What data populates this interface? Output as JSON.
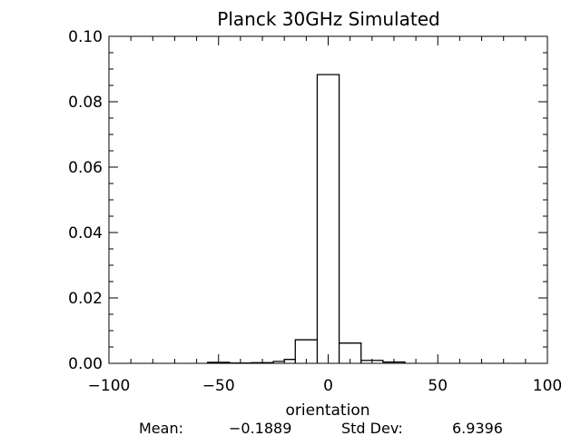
{
  "chart_data": {
    "type": "histogram",
    "title": "Planck 30GHz Simulated",
    "xlabel": "orientation",
    "ylabel": "",
    "xlim": [
      -100,
      100
    ],
    "ylim": [
      0,
      0.1
    ],
    "x_ticks": [
      -100,
      -50,
      0,
      50,
      100
    ],
    "x_tick_labels": [
      "−100",
      "−50",
      "0",
      "50",
      "100"
    ],
    "y_ticks": [
      0,
      0.02,
      0.04,
      0.06,
      0.08,
      0.1
    ],
    "y_tick_labels": [
      "0.00",
      "0.02",
      "0.04",
      "0.06",
      "0.08",
      "0.10"
    ],
    "x_minor_per_major": 5,
    "y_minor_per_major": 4,
    "grid": false,
    "bins": [
      {
        "x0": -55,
        "x1": -45,
        "value": 0.0003
      },
      {
        "x0": -45,
        "x1": -35,
        "value": 0.0001
      },
      {
        "x0": -35,
        "x1": -25,
        "value": 0.0002
      },
      {
        "x0": -25,
        "x1": -20,
        "value": 0.0006
      },
      {
        "x0": -20,
        "x1": -15,
        "value": 0.0012
      },
      {
        "x0": -15,
        "x1": -5,
        "value": 0.0072
      },
      {
        "x0": -5,
        "x1": 5,
        "value": 0.0883
      },
      {
        "x0": 5,
        "x1": 15,
        "value": 0.0062
      },
      {
        "x0": 15,
        "x1": 25,
        "value": 0.0009
      },
      {
        "x0": 25,
        "x1": 35,
        "value": 0.0004
      }
    ],
    "stats": {
      "mean_label": "Mean:",
      "mean_value": "−0.1889",
      "std_label": "Std Dev:",
      "std_value": "6.9396"
    }
  }
}
